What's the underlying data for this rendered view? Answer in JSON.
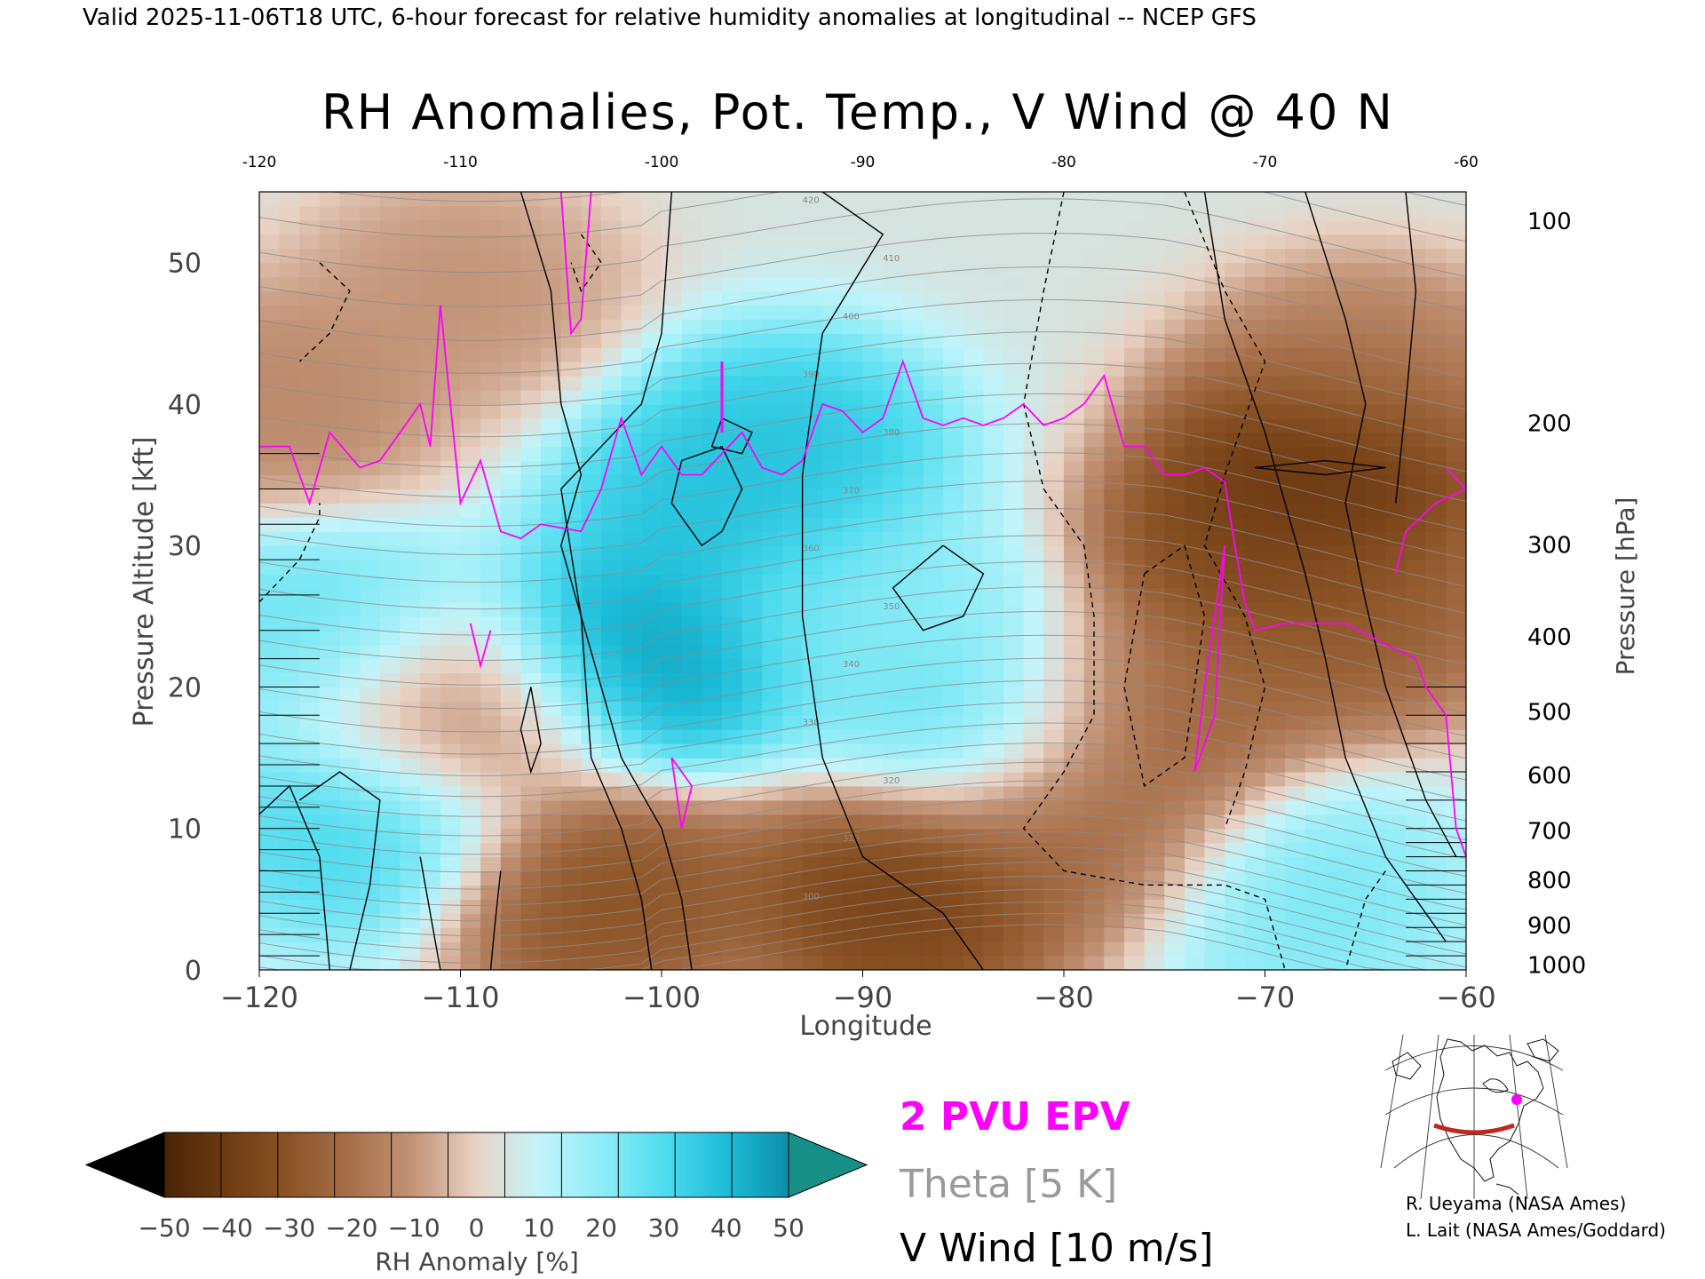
{
  "header": {
    "valid_line": "Valid 2025-11-06T18 UTC, 6-hour forecast for relative humidity anomalies at longitudinal -- NCEP GFS"
  },
  "chart_data": {
    "type": "heatmap",
    "title": "RH Anomalies, Pot. Temp., V Wind @ 40 N",
    "xlabel": "Longitude",
    "ylabel_left": "Pressure Altitude [kft]",
    "ylabel_right": "Pressure [hPa]",
    "xlim": [
      -120,
      -60
    ],
    "ylim": [
      0,
      55
    ],
    "x_ticks": [
      "-120",
      "-110",
      "-100",
      "-90",
      "-80",
      "-70",
      "-60"
    ],
    "x_ticks_bottom": [
      "−120",
      "−110",
      "−100",
      "−90",
      "−80",
      "−70",
      "−60"
    ],
    "x_tick_values": [
      -120,
      -110,
      -100,
      -90,
      -80,
      -70,
      -60
    ],
    "y_ticks": [
      "0",
      "10",
      "20",
      "30",
      "40",
      "50"
    ],
    "y_tick_values": [
      0,
      10,
      20,
      30,
      40,
      50
    ],
    "pressure_ticks": [
      {
        "label": "100",
        "kft": 53.0
      },
      {
        "label": "200",
        "kft": 38.7
      },
      {
        "label": "300",
        "kft": 30.1
      },
      {
        "label": "400",
        "kft": 23.6
      },
      {
        "label": "500",
        "kft": 18.3
      },
      {
        "label": "600",
        "kft": 13.8
      },
      {
        "label": "700",
        "kft": 9.9
      },
      {
        "label": "800",
        "kft": 6.4
      },
      {
        "label": "900",
        "kft": 3.2
      },
      {
        "label": "1000",
        "kft": 0.4
      }
    ],
    "rh_anomaly_field": {
      "units": "%",
      "background": 5,
      "features": [
        {
          "lon": -67,
          "kft": 36,
          "value": -50
        },
        {
          "lon": -70,
          "kft": 30,
          "value": -40
        },
        {
          "lon": -66,
          "kft": 25,
          "value": -30
        },
        {
          "lon": -76,
          "kft": 18,
          "value": -28
        },
        {
          "lon": -79,
          "kft": 10,
          "value": -25
        },
        {
          "lon": -88,
          "kft": 5,
          "value": -42
        },
        {
          "lon": -103,
          "kft": 5,
          "value": -35
        },
        {
          "lon": -110,
          "kft": 18,
          "value": -18
        },
        {
          "lon": -119,
          "kft": 40,
          "value": -15
        },
        {
          "lon": -110,
          "kft": 48,
          "value": -12
        },
        {
          "lon": -65,
          "kft": 42,
          "value": -18
        },
        {
          "lon": -101,
          "kft": 22,
          "value": 52
        },
        {
          "lon": -97,
          "kft": 32,
          "value": 42
        },
        {
          "lon": -94,
          "kft": 37,
          "value": 40
        },
        {
          "lon": -84,
          "kft": 18,
          "value": 30
        },
        {
          "lon": -115,
          "kft": 10,
          "value": 35
        },
        {
          "lon": -117,
          "kft": 24,
          "value": 28
        },
        {
          "lon": -68,
          "kft": 5,
          "value": 25
        },
        {
          "lon": -90,
          "kft": 26,
          "value": 22
        }
      ]
    },
    "theta_contours_K": [
      300,
      310,
      320,
      330,
      340,
      350,
      360,
      370,
      380,
      390,
      400,
      410,
      420
    ],
    "legend": {
      "colorbar": {
        "label": "RH Anomaly [%]",
        "tick_labels": [
          "−50",
          "−40",
          "−30",
          "−20",
          "−10",
          "0",
          "10",
          "20",
          "30",
          "40",
          "50"
        ],
        "colors": [
          "#4a2406",
          "#6e3a12",
          "#8c5426",
          "#a8704a",
          "#c39478",
          "#e9d2c4",
          "#c3f4fa",
          "#8eecf7",
          "#4fdcef",
          "#1cbcd8",
          "#0b8fab"
        ],
        "under_color": "#000000",
        "over_color": "#168f86"
      },
      "epv_label": "2 PVU EPV",
      "epv_color": "#ff00ff",
      "theta_label": "Theta [5 K]",
      "theta_color": "#9a9a9a",
      "wind_label": "V Wind [10 m/s]",
      "wind_color": "#000000"
    },
    "grid": false
  },
  "credits": {
    "line1": "R. Ueyama (NASA Ames)",
    "line2": "L. Lait (NASA Ames/Goddard)"
  },
  "locator_map": {
    "marker_color": "#ff00ff",
    "section_color": "#c0281e"
  }
}
